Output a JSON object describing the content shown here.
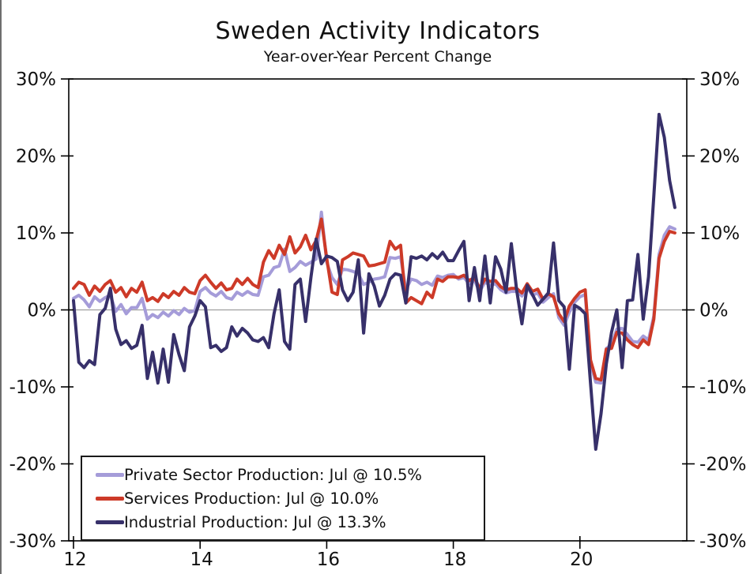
{
  "chart_data": {
    "type": "line",
    "title": "Sweden Activity Indicators",
    "subtitle": "Year-over-Year Percent Change",
    "frequency": "monthly",
    "x_start": {
      "year": 2012,
      "month": 1
    },
    "x_end": {
      "year": 2021,
      "month": 7
    },
    "ylim": [
      -30,
      30
    ],
    "grid": false,
    "zero_line": true,
    "zero_line_color": "#9e9e9e",
    "axis_color": "#000000",
    "legend_position": "bottom-left",
    "y_ticks": [
      {
        "value": 30,
        "label": "30%"
      },
      {
        "value": 20,
        "label": "20%"
      },
      {
        "value": 10,
        "label": "10%"
      },
      {
        "value": 0,
        "label": "0%"
      },
      {
        "value": -10,
        "label": "-10%"
      },
      {
        "value": -20,
        "label": "-20%"
      },
      {
        "value": -30,
        "label": "-30%"
      }
    ],
    "y_tick_sides": "both",
    "x_ticks": [
      {
        "year": 2012,
        "label": "12"
      },
      {
        "year": 2014,
        "label": "14"
      },
      {
        "year": 2016,
        "label": "16"
      },
      {
        "year": 2018,
        "label": "18"
      },
      {
        "year": 2020,
        "label": "20"
      }
    ],
    "series": [
      {
        "key": "private_sector",
        "name": "Private Sector Production: Jul @ 10.5%",
        "color": "#a59cd9",
        "latest": {
          "month": "Jul",
          "value": 10.5
        },
        "values": [
          1.5,
          1.9,
          1.3,
          0.4,
          1.7,
          1.1,
          1.6,
          1.9,
          -0.2,
          0.7,
          -0.5,
          0.3,
          0.3,
          1.5,
          -1.2,
          -0.6,
          -1.0,
          -0.3,
          -0.8,
          -0.1,
          -0.6,
          0.2,
          -0.3,
          -0.1,
          2.4,
          2.9,
          2.2,
          1.8,
          2.4,
          1.6,
          1.4,
          2.3,
          1.9,
          2.4,
          2.0,
          1.9,
          4.3,
          4.5,
          5.5,
          5.7,
          7.9,
          5.0,
          5.5,
          6.3,
          5.8,
          6.2,
          6.6,
          12.7,
          6.2,
          4.2,
          3.3,
          5.3,
          5.2,
          5.0,
          4.7,
          3.3,
          3.6,
          4.0,
          4.1,
          4.3,
          6.8,
          6.7,
          6.9,
          2.6,
          4.0,
          3.8,
          3.3,
          3.6,
          3.2,
          4.4,
          4.2,
          4.5,
          4.6,
          4.0,
          4.2,
          3.4,
          3.8,
          2.4,
          3.6,
          3.2,
          3.4,
          2.6,
          2.2,
          2.4,
          2.4,
          1.8,
          2.9,
          1.9,
          2.2,
          1.0,
          1.6,
          2.1,
          -1.0,
          -2.0,
          -0.3,
          1.0,
          1.7,
          2.0,
          -6.9,
          -9.4,
          -9.5,
          -5.0,
          -4.5,
          -2.5,
          -2.4,
          -3.2,
          -4.1,
          -4.2,
          -3.4,
          -3.9,
          -0.8,
          7.2,
          9.7,
          10.8,
          10.5
        ]
      },
      {
        "key": "services",
        "name": "Services Production: Jul @ 10.0%",
        "color": "#cd3a28",
        "latest": {
          "month": "Jul",
          "value": 10.0
        },
        "values": [
          2.8,
          3.6,
          3.3,
          1.9,
          3.1,
          2.4,
          3.3,
          3.8,
          2.3,
          2.9,
          1.7,
          2.8,
          2.3,
          3.6,
          1.2,
          1.6,
          1.1,
          2.1,
          1.6,
          2.4,
          1.9,
          2.9,
          2.3,
          2.1,
          3.8,
          4.5,
          3.6,
          2.8,
          3.5,
          2.6,
          2.8,
          4.0,
          3.3,
          4.1,
          3.3,
          2.9,
          6.2,
          7.7,
          6.7,
          8.4,
          7.2,
          9.5,
          7.4,
          8.2,
          9.7,
          7.8,
          9.0,
          11.8,
          6.7,
          2.3,
          2.0,
          6.5,
          6.9,
          7.4,
          7.2,
          7.0,
          5.7,
          5.8,
          6.0,
          6.2,
          8.9,
          7.9,
          8.4,
          0.9,
          1.6,
          1.2,
          0.8,
          2.3,
          1.6,
          4.0,
          3.7,
          4.3,
          4.3,
          4.2,
          4.5,
          3.8,
          4.2,
          2.8,
          4.0,
          3.7,
          3.8,
          3.0,
          2.6,
          2.8,
          2.8,
          2.2,
          3.4,
          2.4,
          2.7,
          1.4,
          2.1,
          1.7,
          -0.5,
          -1.5,
          0.5,
          1.5,
          2.3,
          2.6,
          -6.5,
          -8.9,
          -9.1,
          -5.1,
          -5.0,
          -2.9,
          -3.0,
          -3.9,
          -4.5,
          -4.9,
          -3.9,
          -4.5,
          -1.2,
          6.7,
          8.9,
          10.2,
          10.0
        ]
      },
      {
        "key": "industrial",
        "name": "Industrial Production: Jul @ 13.3%",
        "color": "#37306a",
        "latest": {
          "month": "Jul",
          "value": 13.3
        },
        "values": [
          1.2,
          -6.8,
          -7.5,
          -6.6,
          -7.1,
          -0.6,
          0.2,
          2.8,
          -2.5,
          -4.5,
          -4.0,
          -5.0,
          -4.6,
          -2.0,
          -8.9,
          -5.5,
          -9.5,
          -5.1,
          -9.4,
          -3.2,
          -5.8,
          -7.9,
          -2.2,
          -0.8,
          1.2,
          0.4,
          -4.9,
          -4.6,
          -5.4,
          -4.9,
          -2.2,
          -3.4,
          -2.4,
          -3.0,
          -3.9,
          -4.1,
          -3.6,
          -4.9,
          -0.5,
          2.6,
          -4.1,
          -5.1,
          3.3,
          4.0,
          -1.5,
          4.2,
          9.2,
          6.0,
          7.0,
          6.8,
          6.3,
          2.6,
          1.2,
          2.3,
          6.5,
          -3.0,
          4.7,
          3.1,
          0.5,
          1.9,
          4.0,
          4.7,
          4.5,
          0.9,
          6.9,
          6.7,
          7.0,
          6.5,
          7.3,
          6.7,
          7.5,
          6.4,
          6.4,
          7.7,
          8.9,
          1.2,
          5.5,
          1.2,
          7.0,
          0.9,
          6.9,
          5.3,
          2.3,
          8.6,
          2.6,
          -1.8,
          3.2,
          2.0,
          0.6,
          1.4,
          2.2,
          8.7,
          1.2,
          0.4,
          -7.7,
          0.6,
          0.2,
          -0.5,
          -9.5,
          -18.1,
          -13.5,
          -7.0,
          -2.9,
          0.0,
          -7.5,
          1.2,
          1.3,
          7.2,
          -1.2,
          4.3,
          14.8,
          25.4,
          22.4,
          16.8,
          13.3
        ]
      }
    ]
  }
}
